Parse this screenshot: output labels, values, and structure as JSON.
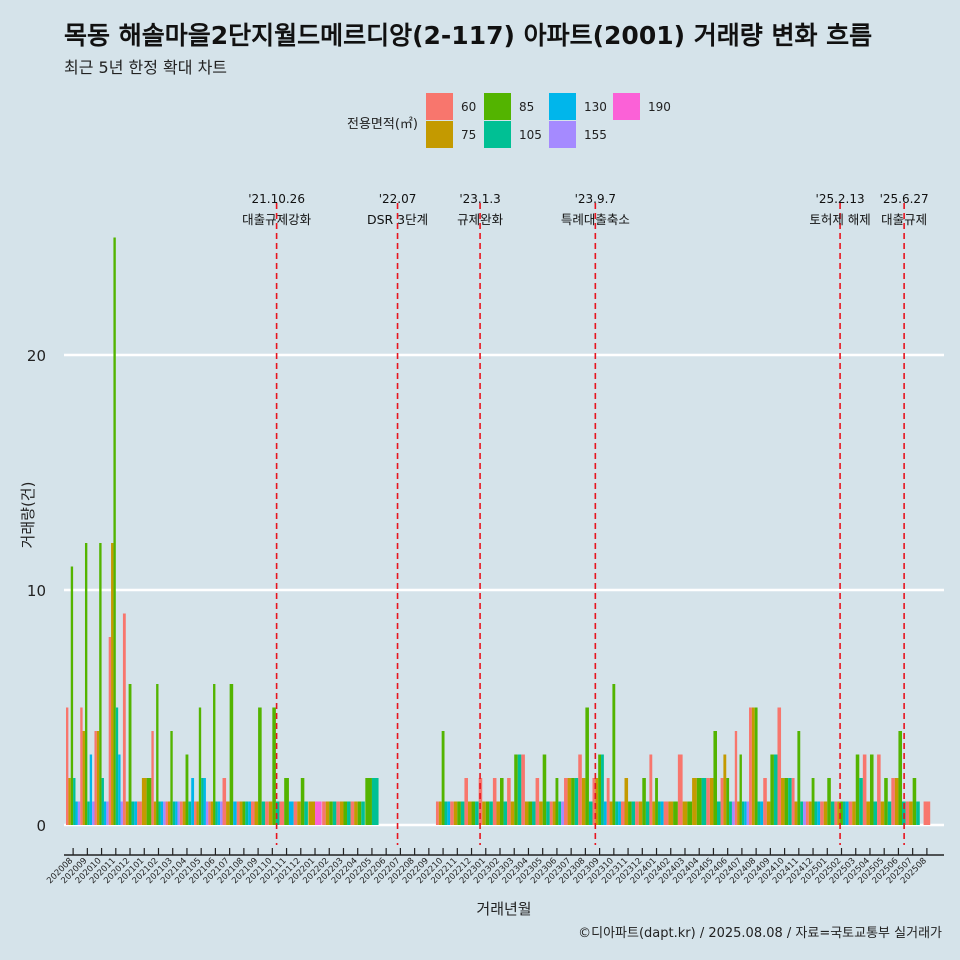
{
  "title": "목동 해솔마을2단지월드메르디앙(2-117) 아파트(2001) 거래량 변화 흐름",
  "subtitle": "최근 5년 한정 확대 차트",
  "credit": "©디아파트(dapt.kr) / 2025.08.08 / 자료=국토교통부 실거래가",
  "colors": {
    "background": "#d5e3ea",
    "grid": "#ffffff",
    "event_line": "#e8141e"
  },
  "chart_data": {
    "type": "bar",
    "title": "목동 해솔마을2단지월드메르디앙(2-117) 아파트(2001) 거래량 변화 흐름",
    "subtitle": "최근 5년 한정 확대 차트",
    "xlabel": "거래년월",
    "ylabel": "거래량(건)",
    "ylim": [
      -1,
      30
    ],
    "yticks": [
      0,
      10,
      20
    ],
    "grid": true,
    "legend": {
      "title": "전용면적(㎡)",
      "position": "top",
      "entries": [
        {
          "label": "60",
          "color": "#f8766d"
        },
        {
          "label": "75",
          "color": "#c49a00"
        },
        {
          "label": "85",
          "color": "#53b400"
        },
        {
          "label": "105",
          "color": "#00c094"
        },
        {
          "label": "130",
          "color": "#00b6eb"
        },
        {
          "label": "155",
          "color": "#a58aff"
        },
        {
          "label": "190",
          "color": "#fb61d7"
        }
      ]
    },
    "months": [
      "202008",
      "202009",
      "202010",
      "202011",
      "202012",
      "202101",
      "202102",
      "202103",
      "202104",
      "202105",
      "202106",
      "202107",
      "202108",
      "202109",
      "202110",
      "202111",
      "202112",
      "202201",
      "202202",
      "202203",
      "202204",
      "202205",
      "202206",
      "202207",
      "202208",
      "202209",
      "202210",
      "202211",
      "202212",
      "202301",
      "202302",
      "202303",
      "202304",
      "202305",
      "202306",
      "202307",
      "202308",
      "202309",
      "202310",
      "202311",
      "202312",
      "202401",
      "202402",
      "202403",
      "202404",
      "202405",
      "202406",
      "202407",
      "202408",
      "202409",
      "202410",
      "202411",
      "202412",
      "202501",
      "202502",
      "202503",
      "202504",
      "202505",
      "202506",
      "202507",
      "202508"
    ],
    "series": [
      {
        "name": "60",
        "values": [
          5,
          5,
          4,
          8,
          9,
          1,
          4,
          1,
          1,
          1,
          1,
          2,
          1,
          1,
          1,
          1,
          1,
          0,
          1,
          1,
          1,
          0,
          0,
          0,
          0,
          0,
          1,
          1,
          2,
          2,
          2,
          2,
          3,
          2,
          1,
          2,
          3,
          2,
          2,
          1,
          1,
          3,
          1,
          3,
          0,
          2,
          2,
          4,
          5,
          2,
          5,
          2,
          1,
          1,
          1,
          1,
          3,
          3,
          2,
          1,
          1
        ]
      },
      {
        "name": "75",
        "values": [
          2,
          4,
          4,
          12,
          1,
          2,
          1,
          1,
          1,
          1,
          1,
          1,
          1,
          1,
          1,
          0,
          1,
          1,
          1,
          1,
          1,
          0,
          0,
          0,
          0,
          0,
          1,
          1,
          1,
          1,
          1,
          1,
          1,
          1,
          1,
          2,
          2,
          2,
          1,
          2,
          1,
          1,
          1,
          1,
          2,
          2,
          3,
          1,
          5,
          1,
          2,
          1,
          1,
          1,
          1,
          1,
          1,
          1,
          2,
          1,
          0
        ]
      },
      {
        "name": "85",
        "values": [
          11,
          12,
          12,
          25,
          6,
          2,
          6,
          4,
          3,
          5,
          6,
          6,
          1,
          5,
          5,
          2,
          2,
          0,
          1,
          1,
          1,
          2,
          0,
          0,
          0,
          0,
          4,
          1,
          1,
          1,
          2,
          3,
          1,
          3,
          2,
          2,
          5,
          3,
          6,
          1,
          2,
          2,
          1,
          1,
          2,
          4,
          2,
          3,
          5,
          3,
          2,
          4,
          2,
          2,
          1,
          3,
          3,
          2,
          4,
          2,
          0
        ]
      },
      {
        "name": "105",
        "values": [
          2,
          1,
          2,
          5,
          1,
          0,
          1,
          1,
          1,
          2,
          1,
          0,
          1,
          1,
          1,
          0,
          1,
          0,
          1,
          1,
          1,
          2,
          0,
          0,
          0,
          0,
          1,
          1,
          1,
          1,
          1,
          3,
          1,
          1,
          1,
          2,
          1,
          3,
          1,
          1,
          1,
          1,
          0,
          0,
          2,
          1,
          1,
          1,
          1,
          3,
          2,
          1,
          1,
          1,
          1,
          2,
          1,
          1,
          1,
          1,
          0
        ]
      },
      {
        "name": "130",
        "values": [
          1,
          3,
          1,
          3,
          1,
          0,
          1,
          1,
          2,
          2,
          1,
          1,
          1,
          0,
          0,
          1,
          0,
          0,
          0,
          0,
          0,
          0,
          0,
          0,
          0,
          0,
          1,
          0,
          0,
          0,
          0,
          0,
          0,
          0,
          0,
          0,
          0,
          1,
          1,
          0,
          0,
          1,
          0,
          0,
          0,
          0,
          0,
          1,
          1,
          0,
          0,
          0,
          1,
          0,
          1,
          0,
          0,
          0,
          0,
          0,
          0
        ]
      },
      {
        "name": "155",
        "values": [
          1,
          1,
          1,
          1,
          0,
          0,
          1,
          1,
          0,
          1,
          1,
          0,
          0,
          0,
          0,
          0,
          0,
          0,
          0,
          0,
          0,
          0,
          0,
          0,
          0,
          0,
          0,
          0,
          0,
          0,
          0,
          0,
          0,
          0,
          1,
          0,
          0,
          0,
          0,
          0,
          0,
          0,
          0,
          0,
          0,
          0,
          1,
          1,
          0,
          0,
          0,
          1,
          0,
          0,
          0,
          0,
          0,
          0,
          0,
          0,
          0
        ]
      },
      {
        "name": "190",
        "values": [
          0,
          0,
          0,
          0,
          0,
          0,
          0,
          0,
          0,
          0,
          0,
          0,
          0,
          0,
          0,
          0,
          0,
          1,
          0,
          0,
          0,
          0,
          0,
          0,
          0,
          0,
          0,
          0,
          0,
          0,
          0,
          0,
          0,
          0,
          0,
          0,
          0,
          0,
          0,
          0,
          0,
          0,
          0,
          0,
          0,
          0,
          0,
          0,
          0,
          0,
          0,
          0,
          0,
          0,
          0,
          0,
          0,
          0,
          0,
          0,
          0
        ]
      }
    ],
    "events": [
      {
        "date": "'21.10.26",
        "label": "대출규제강화",
        "month_index": 14.8
      },
      {
        "date": "'22.07",
        "label": "DSR 3단계",
        "month_index": 23.3
      },
      {
        "date": "'23.1.3",
        "label": "규제완화",
        "month_index": 29.1
      },
      {
        "date": "'23.9.7",
        "label": "특례대출축소",
        "month_index": 37.2
      },
      {
        "date": "'25.2.13",
        "label": "토허제 해제",
        "month_index": 54.4
      },
      {
        "date": "'25.6.27",
        "label": "대출규제",
        "month_index": 58.9
      }
    ]
  }
}
